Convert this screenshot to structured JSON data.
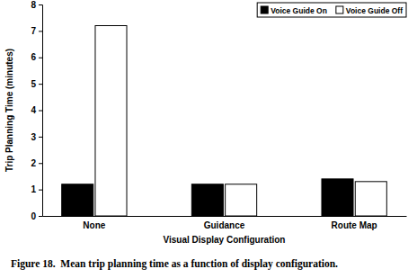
{
  "chart_data": {
    "type": "bar",
    "title": "Figure 18.  Mean trip planning time as a function of display configuration.",
    "x_label": "Visual Display Configuration",
    "y_label": "Trip Planning Time (minutes)",
    "categories": [
      "None",
      "Guidance",
      "Route Map"
    ],
    "series": [
      {
        "name": "Voice Guide On",
        "color": "#000000",
        "values": [
          1.2,
          1.2,
          1.4
        ]
      },
      {
        "name": "Voice Guide Off",
        "color": "#ffffff",
        "values": [
          7.2,
          1.2,
          1.3
        ]
      }
    ],
    "ylim": [
      0,
      8
    ],
    "yticks": [
      0,
      1,
      2,
      3,
      4,
      5,
      6,
      7,
      8
    ],
    "grid": false,
    "legend": "top-right"
  }
}
